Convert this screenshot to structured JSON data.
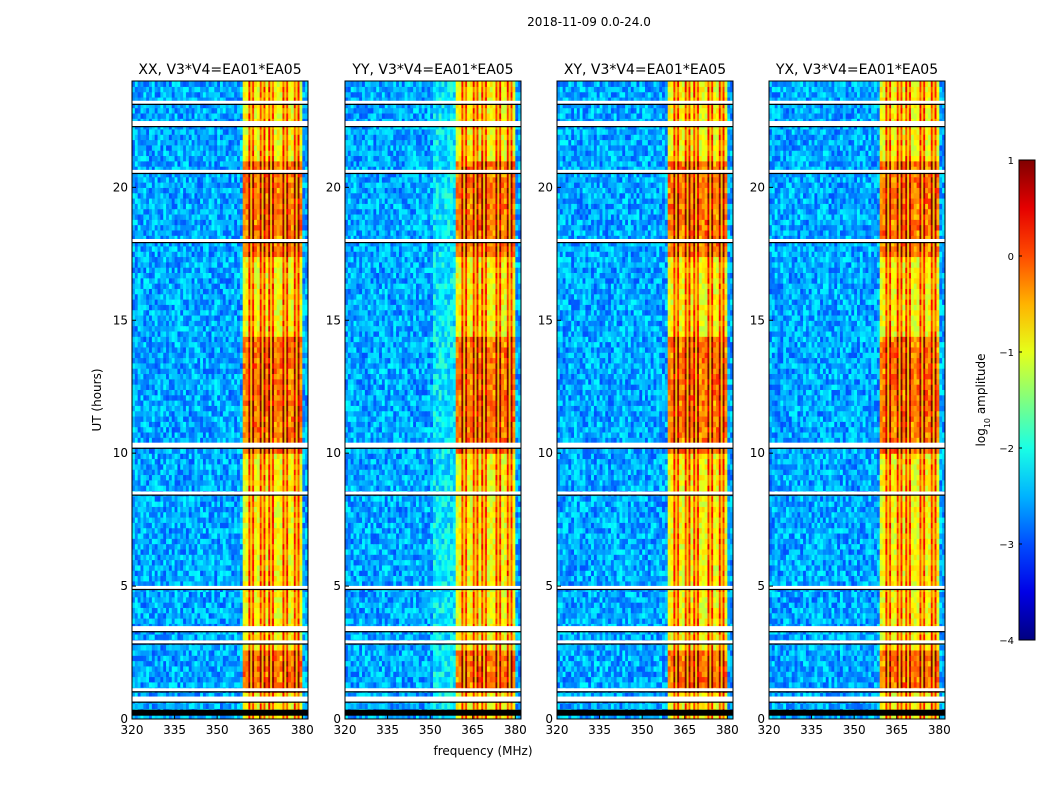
{
  "figure": {
    "suptitle": "2018-11-09 0.0-24.0"
  },
  "chart_data": {
    "type": "heatmap",
    "xlabel": "frequency (MHz)",
    "ylabel": "UT (hours)",
    "xlim": [
      320,
      382
    ],
    "ylim": [
      0,
      24
    ],
    "xticks": [
      320,
      335,
      350,
      365,
      380
    ],
    "yticks": [
      0,
      5,
      10,
      15,
      20
    ],
    "panels": [
      {
        "title": "XX, V3*V4=EA01*EA05"
      },
      {
        "title": "YY, V3*V4=EA01*EA05"
      },
      {
        "title": "XY, V3*V4=EA01*EA05"
      },
      {
        "title": "YX, V3*V4=EA01*EA05"
      }
    ],
    "colorbar": {
      "label": "log10 amplitude",
      "label_prefix": "log",
      "label_sub": "10",
      "label_suffix": " amplitude",
      "range": [
        -4,
        1
      ],
      "ticks": [
        "1",
        "0",
        "−1",
        "−2",
        "−3",
        "−4"
      ],
      "tick_values": [
        1,
        0,
        -1,
        -2,
        -3,
        -4
      ],
      "cmap": "jet"
    },
    "bright_band_mhz": [
      359,
      380
    ],
    "strong_line_mhz": [
      362,
      366,
      369,
      374,
      378
    ],
    "gap_hours": [
      0.75,
      1.1,
      2.9,
      3.4,
      4.95,
      8.5,
      10.3,
      18.0,
      20.6,
      22.4,
      23.2
    ],
    "dense_emission_hours": [
      [
        0.9,
        2.6
      ],
      [
        10.0,
        14.3
      ],
      [
        17.5,
        21.0
      ]
    ]
  }
}
